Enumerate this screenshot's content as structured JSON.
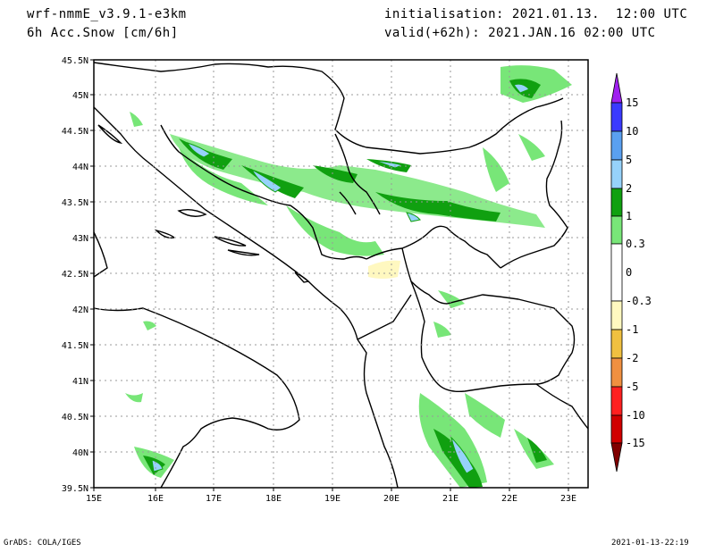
{
  "header": {
    "model": "wrf-nmmE_v3.9.1-e3km",
    "field": "6h Acc.Snow [cm/6h]",
    "init": "initialisation: 2021.01.13.  12:00 UTC",
    "valid": "valid(+62h): 2021.JAN.16 02:00 UTC"
  },
  "axes": {
    "lat_labels": [
      "45.5N",
      "45N",
      "44.5N",
      "44N",
      "43.5N",
      "43N",
      "42.5N",
      "42N",
      "41.5N",
      "41N",
      "40.5N",
      "40N",
      "39.5N"
    ],
    "lon_labels": [
      "15E",
      "16E",
      "17E",
      "18E",
      "19E",
      "20E",
      "21E",
      "22E",
      "23E"
    ]
  },
  "colorbar": {
    "labels": [
      "15",
      "10",
      "5",
      "2",
      "1",
      "0.3",
      "0",
      "-0.3",
      "-1",
      "-2",
      "-5",
      "-10",
      "-15"
    ],
    "colors": [
      "#a020f0",
      "#3a3aff",
      "#5aa0f0",
      "#96d2fa",
      "#10a010",
      "#30b030",
      "#78e678",
      "#ffffff",
      "#fff8c0",
      "#f0c040",
      "#f09040",
      "#ff2020",
      "#d00000",
      "#a00000",
      "#800000"
    ]
  },
  "footer": {
    "left": "GrADS: COLA/IGES",
    "right": "2021-01-13-22:19"
  }
}
